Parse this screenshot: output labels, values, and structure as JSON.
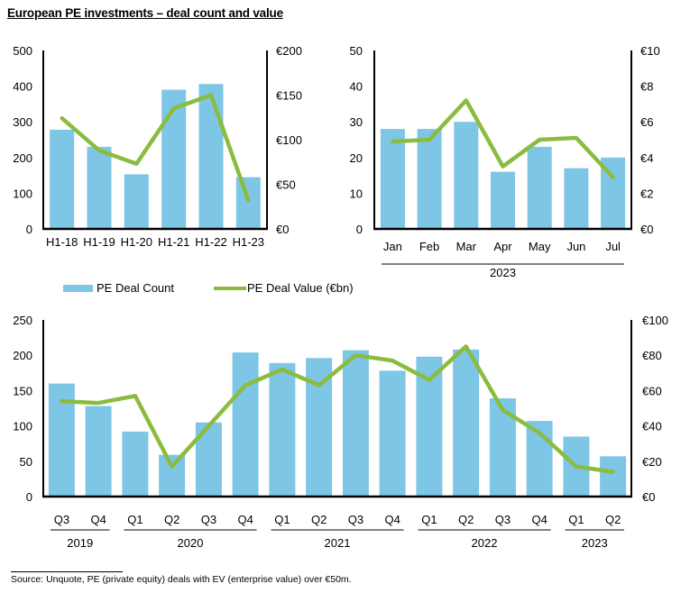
{
  "title": "European PE investments – deal count and value",
  "legend": {
    "bar_label": "PE Deal Count",
    "line_label": "PE Deal Value (€bn)"
  },
  "colors": {
    "bar": "#7ec6e5",
    "line": "#8bbb3f",
    "axis": "#000000"
  },
  "footnote": "Source:  Unquote, PE (private equity) deals with EV (enterprise value) over €50m.",
  "chart_data": [
    {
      "type": "bar",
      "id": "half-yearly",
      "title": "",
      "categories": [
        "H1-18",
        "H1-19",
        "H1-20",
        "H1-21",
        "H1-22",
        "H1-23"
      ],
      "group_labels": [],
      "series": [
        {
          "name": "PE Deal Count",
          "axis": "left",
          "kind": "bar",
          "values": [
            278,
            230,
            153,
            390,
            406,
            145
          ]
        },
        {
          "name": "PE Deal Value (€bn)",
          "axis": "right",
          "kind": "line",
          "values": [
            124,
            88,
            73,
            135,
            150,
            32
          ]
        }
      ],
      "y_left": {
        "min": 0,
        "max": 500,
        "ticks": [
          "0",
          "100",
          "200",
          "300",
          "400",
          "500"
        ]
      },
      "y_right": {
        "min": 0,
        "max": 200,
        "ticks": [
          "€0",
          "€50",
          "€100",
          "€150",
          "€200"
        ]
      },
      "grid": false
    },
    {
      "type": "bar",
      "id": "monthly-2023",
      "title": "",
      "categories": [
        "Jan",
        "Feb",
        "Mar",
        "Apr",
        "May",
        "Jun",
        "Jul"
      ],
      "group_labels": [
        {
          "label": "2023",
          "from": 0,
          "to": 6
        }
      ],
      "series": [
        {
          "name": "PE Deal Count",
          "axis": "left",
          "kind": "bar",
          "values": [
            28,
            28,
            30,
            16,
            23,
            17,
            20
          ]
        },
        {
          "name": "PE Deal Value (€bn)",
          "axis": "right",
          "kind": "line",
          "values": [
            4.9,
            5.0,
            7.2,
            3.5,
            5.0,
            5.1,
            2.9
          ]
        }
      ],
      "y_left": {
        "min": 0,
        "max": 50,
        "ticks": [
          "0",
          "10",
          "20",
          "30",
          "40",
          "50"
        ]
      },
      "y_right": {
        "min": 0,
        "max": 10,
        "ticks": [
          "€0",
          "€2",
          "€4",
          "€6",
          "€8",
          "€10"
        ]
      },
      "grid": false
    },
    {
      "type": "bar",
      "id": "quarterly",
      "title": "",
      "categories": [
        "Q3",
        "Q4",
        "Q1",
        "Q2",
        "Q3",
        "Q4",
        "Q1",
        "Q2",
        "Q3",
        "Q4",
        "Q1",
        "Q2",
        "Q3",
        "Q4",
        "Q1",
        "Q2"
      ],
      "group_labels": [
        {
          "label": "2019",
          "from": 0,
          "to": 1
        },
        {
          "label": "2020",
          "from": 2,
          "to": 5
        },
        {
          "label": "2021",
          "from": 6,
          "to": 9
        },
        {
          "label": "2022",
          "from": 10,
          "to": 13
        },
        {
          "label": "2023",
          "from": 14,
          "to": 15
        }
      ],
      "series": [
        {
          "name": "PE Deal Count",
          "axis": "left",
          "kind": "bar",
          "values": [
            160,
            128,
            92,
            59,
            105,
            204,
            189,
            196,
            207,
            178,
            198,
            208,
            139,
            107,
            85,
            57
          ]
        },
        {
          "name": "PE Deal Value (€bn)",
          "axis": "right",
          "kind": "line",
          "values": [
            54,
            53,
            57,
            17,
            40,
            63,
            72,
            63,
            80,
            77,
            66,
            85,
            49,
            36,
            17,
            14
          ]
        }
      ],
      "y_left": {
        "min": 0,
        "max": 250,
        "ticks": [
          "0",
          "50",
          "100",
          "150",
          "200",
          "250"
        ]
      },
      "y_right": {
        "min": 0,
        "max": 100,
        "ticks": [
          "€0",
          "€20",
          "€40",
          "€60",
          "€80",
          "€100"
        ]
      },
      "grid": false
    }
  ]
}
